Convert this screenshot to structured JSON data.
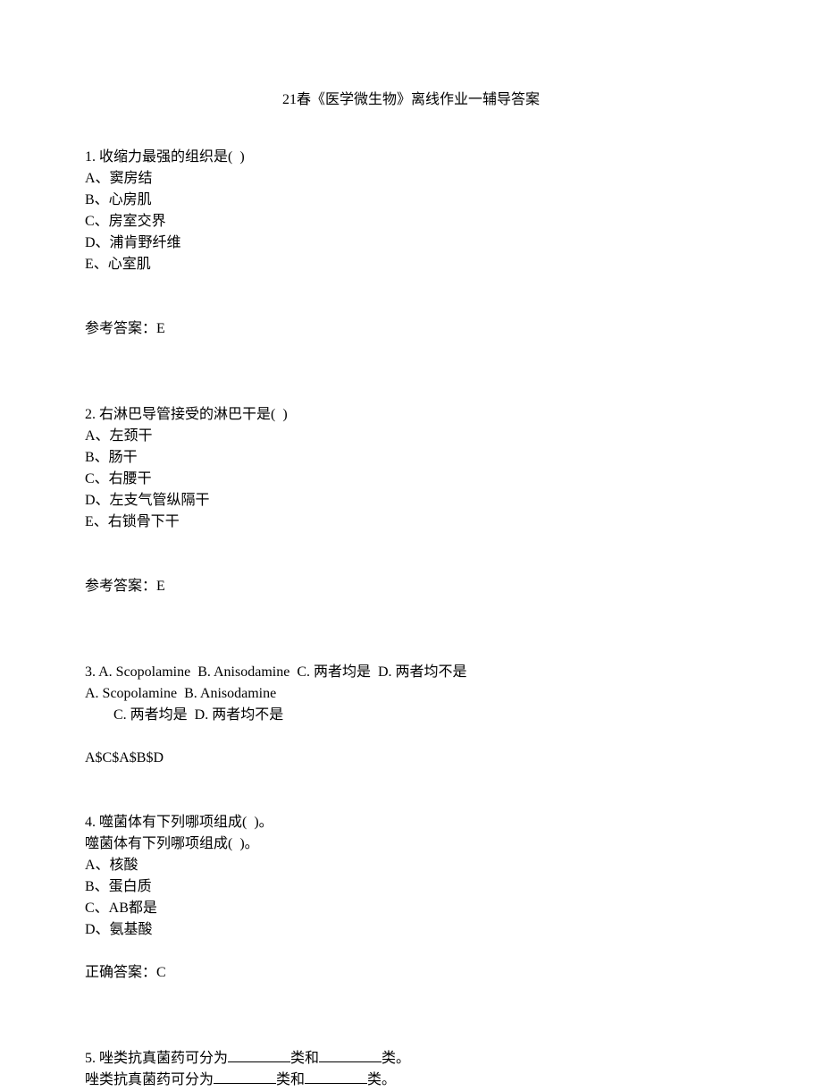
{
  "title": "21春《医学微生物》离线作业一辅导答案",
  "q1": {
    "stem": "1. 收缩力最强的组织是(  )",
    "opts": [
      "A、窦房结",
      "B、心房肌",
      "C、房室交界",
      "D、浦肯野纤维",
      "E、心室肌"
    ],
    "answer": "参考答案：E"
  },
  "q2": {
    "stem": "2. 右淋巴导管接受的淋巴干是(  )",
    "opts": [
      "A、左颈干",
      "B、肠干",
      "C、右腰干",
      "D、左支气管纵隔干",
      "E、右锁骨下干"
    ],
    "answer": "参考答案：E"
  },
  "q3": {
    "line1": "3. A. Scopolamine  B. Anisodamine  C. 两者均是  D. 两者均不是",
    "line2": "A. Scopolamine  B. Anisodamine",
    "line3": "C. 两者均是  D. 两者均不是",
    "answer": "A$C$A$B$D"
  },
  "q4": {
    "line1": "4. 噬菌体有下列哪项组成(  )。",
    "line2": "噬菌体有下列哪项组成(  )。",
    "opts": [
      "A、核酸",
      "B、蛋白质",
      "C、AB都是",
      "D、氨基酸"
    ],
    "answer": "正确答案：C"
  },
  "q5": {
    "prefix1": "5. 唑类抗真菌药可分为",
    "mid": "类和",
    "suffix": "类。",
    "prefix2": "唑类抗真菌药可分为"
  }
}
